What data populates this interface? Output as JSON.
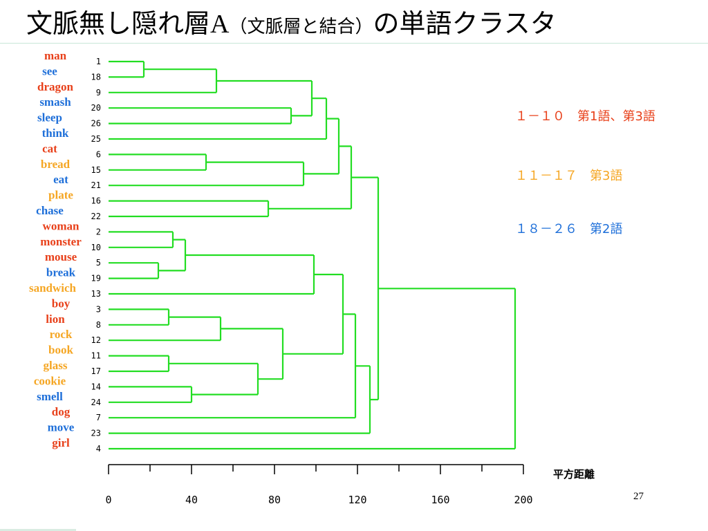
{
  "slide": {
    "title_main": "文脈無し隠れ層",
    "title_latin": "A",
    "title_paren": "（文脈層と結合）",
    "title_tail": "の単語クラスタ",
    "page_number": "27"
  },
  "legend": [
    {
      "text": "１－１０　第1語、第3語",
      "color": "#e8401a"
    },
    {
      "text": "１１－１７　第3語",
      "color": "#f5a623"
    },
    {
      "text": "１８－２６　第2語",
      "color": "#1e6fd9"
    }
  ],
  "colors": {
    "tree": "#22dd22",
    "group1": "#e8401a",
    "group2": "#f5a623",
    "group3": "#1e6fd9"
  },
  "chart_data": {
    "type": "dendrogram",
    "xlabel": "平方距離",
    "xlim": [
      0,
      200
    ],
    "x_ticks": [
      0,
      40,
      80,
      120,
      160,
      200
    ],
    "leaves": [
      {
        "num": "1",
        "word": "man",
        "group": 1
      },
      {
        "num": "18",
        "word": "see",
        "group": 3
      },
      {
        "num": "9",
        "word": "dragon",
        "group": 1
      },
      {
        "num": "20",
        "word": "smash",
        "group": 3
      },
      {
        "num": "26",
        "word": "sleep",
        "group": 3
      },
      {
        "num": "25",
        "word": "think",
        "group": 3
      },
      {
        "num": "6",
        "word": "cat",
        "group": 1
      },
      {
        "num": "15",
        "word": "bread",
        "group": 2
      },
      {
        "num": "21",
        "word": "eat",
        "group": 3
      },
      {
        "num": "16",
        "word": "plate",
        "group": 2
      },
      {
        "num": "22",
        "word": "chase",
        "group": 3
      },
      {
        "num": "2",
        "word": "woman",
        "group": 1
      },
      {
        "num": "10",
        "word": "monster",
        "group": 1
      },
      {
        "num": "5",
        "word": "mouse",
        "group": 1
      },
      {
        "num": "19",
        "word": "break",
        "group": 3
      },
      {
        "num": "13",
        "word": "sandwich",
        "group": 2
      },
      {
        "num": "3",
        "word": "boy",
        "group": 1
      },
      {
        "num": "8",
        "word": "lion",
        "group": 1
      },
      {
        "num": "12",
        "word": "rock",
        "group": 2
      },
      {
        "num": "11",
        "word": "book",
        "group": 2
      },
      {
        "num": "17",
        "word": "glass",
        "group": 2
      },
      {
        "num": "14",
        "word": "cookie",
        "group": 2
      },
      {
        "num": "24",
        "word": "smell",
        "group": 3
      },
      {
        "num": "7",
        "word": "dog",
        "group": 1
      },
      {
        "num": "23",
        "word": "move",
        "group": 3
      },
      {
        "num": "4",
        "word": "girl",
        "group": 1
      }
    ],
    "merges": [
      {
        "a": "L0",
        "b": "L1",
        "h": 17
      },
      {
        "a": "N0",
        "b": "L2",
        "h": 52
      },
      {
        "a": "L3",
        "b": "L4",
        "h": 88
      },
      {
        "a": "N1",
        "b": "N2",
        "h": 98
      },
      {
        "a": "N3",
        "b": "L5",
        "h": 105
      },
      {
        "a": "L6",
        "b": "L7",
        "h": 47
      },
      {
        "a": "N5",
        "b": "L8",
        "h": 94
      },
      {
        "a": "N4",
        "b": "N6",
        "h": 111
      },
      {
        "a": "L9",
        "b": "L10",
        "h": 77
      },
      {
        "a": "N7",
        "b": "N8",
        "h": 117
      },
      {
        "a": "L11",
        "b": "L12",
        "h": 31
      },
      {
        "a": "L13",
        "b": "L14",
        "h": 24
      },
      {
        "a": "N10",
        "b": "N11",
        "h": 37
      },
      {
        "a": "N12",
        "b": "L15",
        "h": 99
      },
      {
        "a": "L16",
        "b": "L17",
        "h": 29
      },
      {
        "a": "N14",
        "b": "L18",
        "h": 54
      },
      {
        "a": "L19",
        "b": "L20",
        "h": 29
      },
      {
        "a": "L21",
        "b": "L22",
        "h": 40
      },
      {
        "a": "N16",
        "b": "N17",
        "h": 72
      },
      {
        "a": "N15",
        "b": "N18",
        "h": 84
      },
      {
        "a": "N13",
        "b": "N19",
        "h": 113
      },
      {
        "a": "N20",
        "b": "L23",
        "h": 119
      },
      {
        "a": "N21",
        "b": "L24",
        "h": 126
      },
      {
        "a": "N9",
        "b": "N22",
        "h": 130
      },
      {
        "a": "N23",
        "b": "L25",
        "h": 196
      }
    ]
  }
}
